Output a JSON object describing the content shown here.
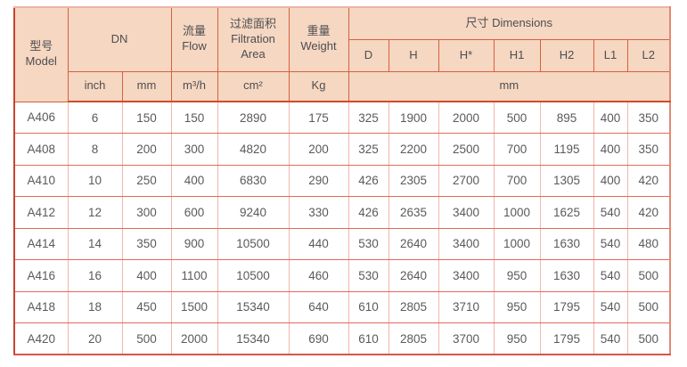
{
  "colors": {
    "header_bg": "#f5d7c2",
    "grid_light": "#f3b5aa",
    "grid_medium": "#e36a58",
    "grid_header": "#d85f3e",
    "outer_border": "#c8432f",
    "header_text": "#4e4e50",
    "data_text": "#595a5c"
  },
  "table": {
    "header": {
      "model_zh": "型号",
      "model_en": "Model",
      "dn": "DN",
      "flow_zh": "流量",
      "flow_en": "Flow",
      "filtration_zh": "过滤面积",
      "filtration_en1": "Filtration",
      "filtration_en2": "Area",
      "weight_zh": "重量",
      "weight_en": "Weight",
      "dimensions": "尺寸 Dimensions",
      "dim_cols": [
        "D",
        "H",
        "H*",
        "H1",
        "H2",
        "L1",
        "L2"
      ],
      "unit_inch": "inch",
      "unit_mm": "mm",
      "unit_flow": "m³/h",
      "unit_area": "cm²",
      "unit_weight": "Kg",
      "unit_dims": "mm"
    },
    "rows": [
      {
        "model": "A406",
        "values": [
          6,
          150,
          150,
          2890,
          175,
          325,
          1900,
          2000,
          500,
          895,
          400,
          350
        ]
      },
      {
        "model": "A408",
        "values": [
          8,
          200,
          300,
          4820,
          200,
          325,
          2200,
          2500,
          700,
          1195,
          400,
          350
        ]
      },
      {
        "model": "A410",
        "values": [
          10,
          250,
          400,
          6830,
          290,
          426,
          2305,
          2700,
          700,
          1305,
          400,
          420
        ]
      },
      {
        "model": "A412",
        "values": [
          12,
          300,
          600,
          9240,
          330,
          426,
          2635,
          3400,
          1000,
          1625,
          540,
          420
        ]
      },
      {
        "model": "A414",
        "values": [
          14,
          350,
          900,
          10500,
          440,
          530,
          2640,
          3400,
          1000,
          1630,
          540,
          480
        ]
      },
      {
        "model": "A416",
        "values": [
          16,
          400,
          1100,
          10500,
          460,
          530,
          2640,
          3400,
          950,
          1630,
          540,
          500
        ]
      },
      {
        "model": "A418",
        "values": [
          18,
          450,
          1500,
          15340,
          640,
          610,
          2805,
          3710,
          950,
          1795,
          540,
          500
        ]
      },
      {
        "model": "A420",
        "values": [
          20,
          500,
          2000,
          15340,
          690,
          610,
          2805,
          3700,
          950,
          1795,
          540,
          500
        ]
      }
    ]
  }
}
